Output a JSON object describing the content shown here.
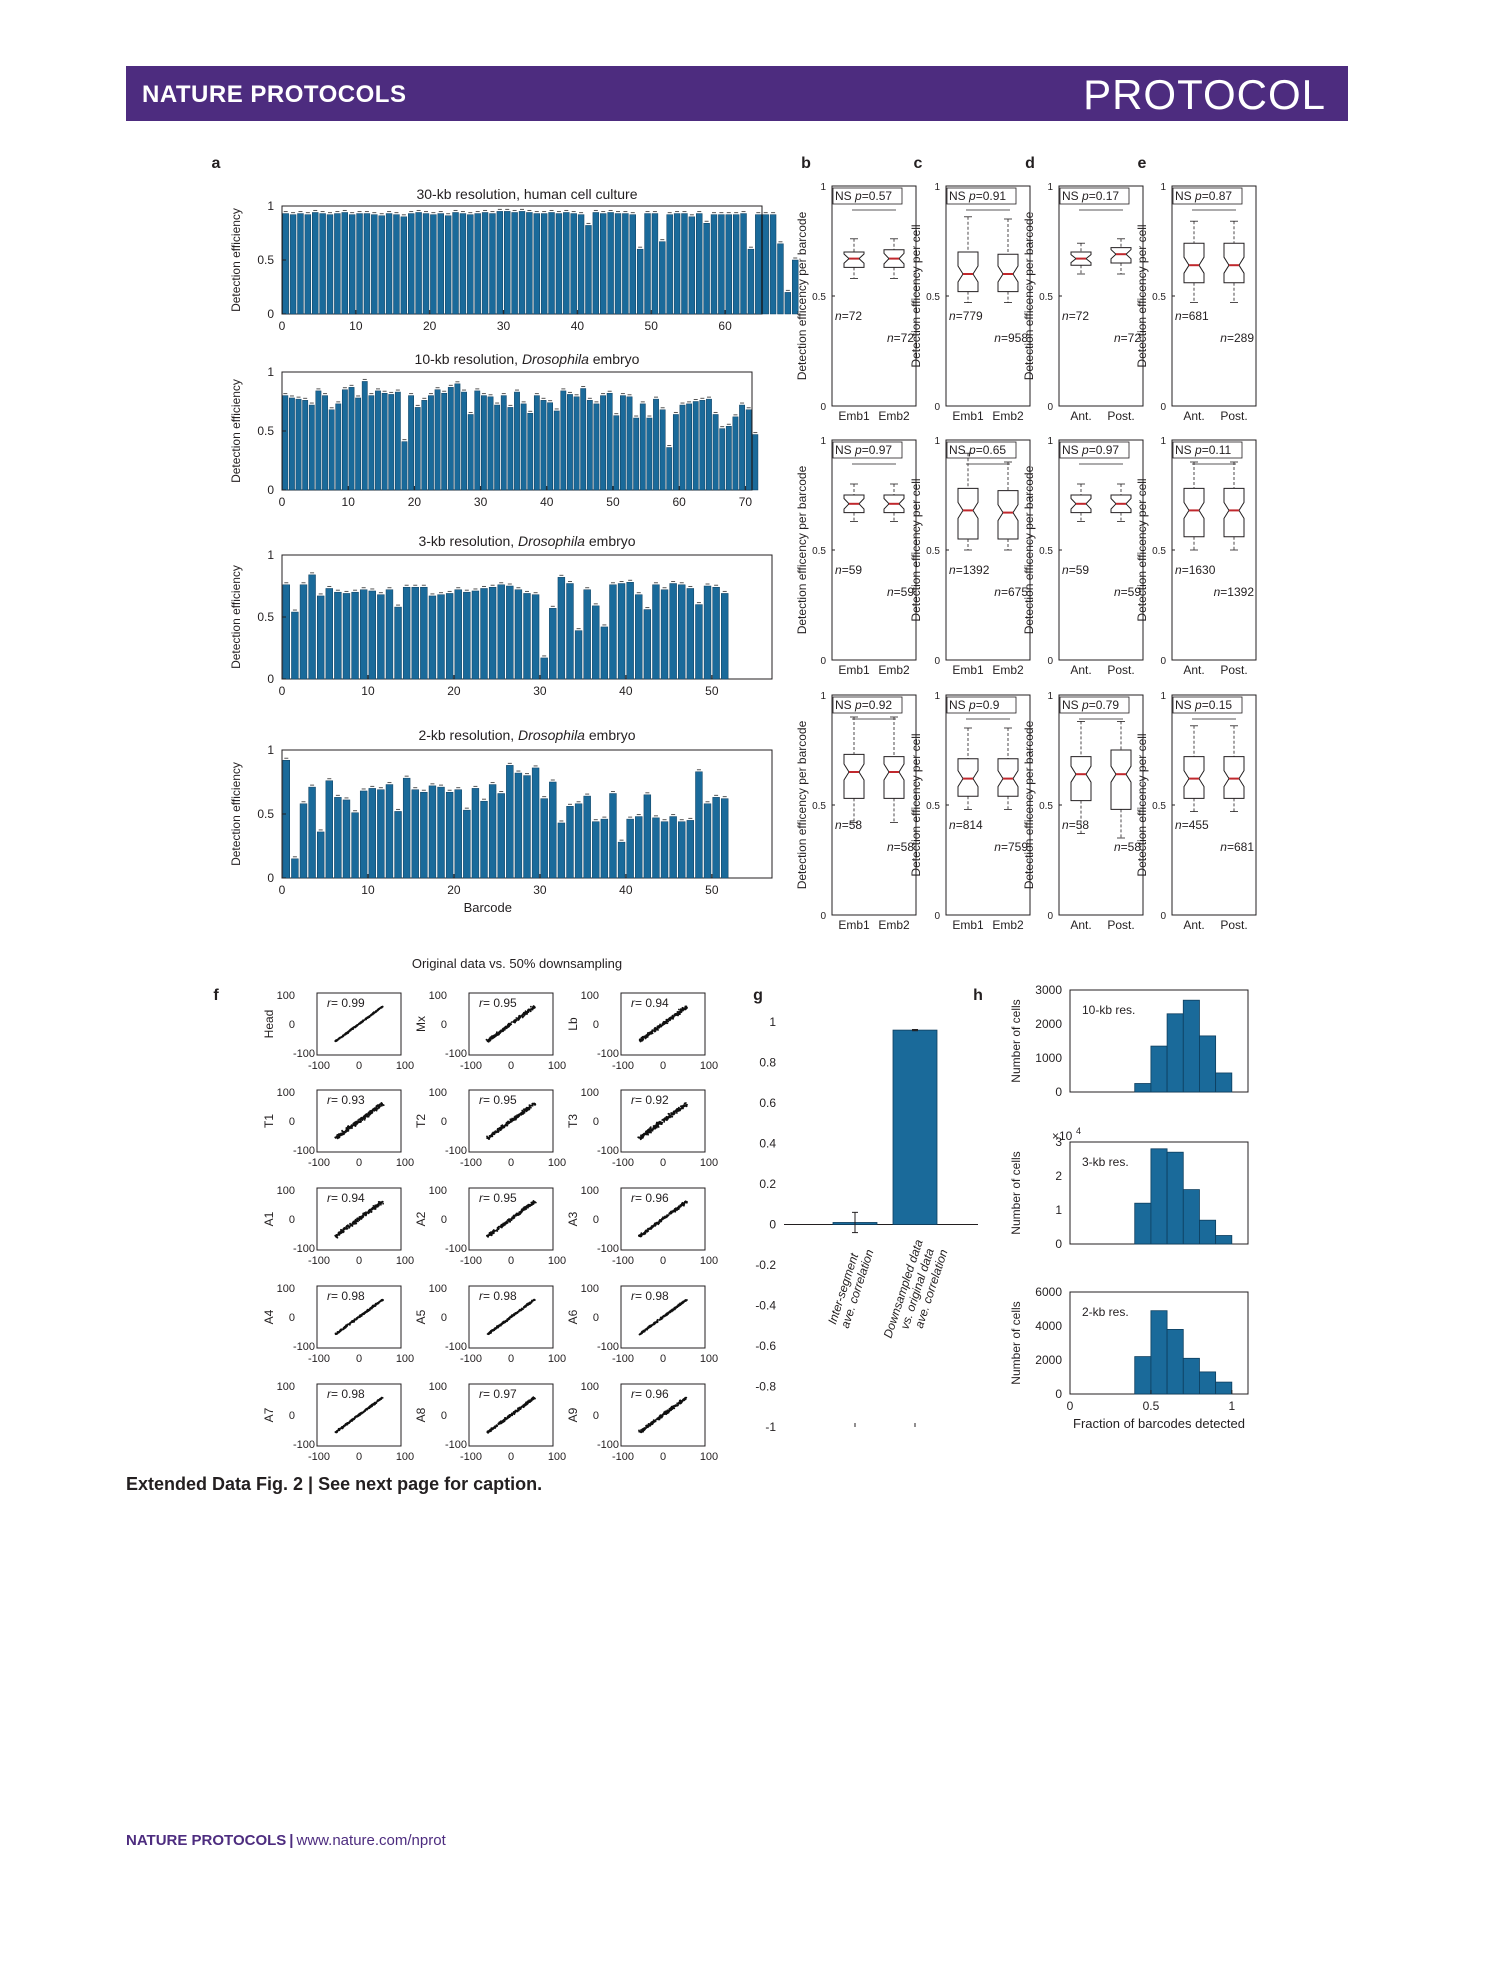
{
  "header": {
    "journal": "NATURE PROTOCOLS",
    "type": "PROTOCOL"
  },
  "caption": "Extended Data Fig. 2 | See next page for caption.",
  "footer": {
    "journal": "NATURE PROTOCOLS",
    "url": "www.nature.com/nprot"
  },
  "colors": {
    "banner": "#4d2c7f",
    "bar": "#1a6a9a",
    "median": "#c0282d"
  },
  "panel_labels": [
    "a",
    "b",
    "c",
    "d",
    "e",
    "f",
    "g",
    "h"
  ],
  "chart_data": [
    {
      "panel": "a",
      "type": "bar",
      "title": "30-kb resolution, human cell culture",
      "ylabel": "Detection efficiency",
      "xlabel": "",
      "xlim": [
        0,
        65
      ],
      "ylim": [
        0,
        1
      ],
      "xticks": [
        0,
        10,
        20,
        30,
        40,
        50,
        60
      ],
      "yticks": [
        "0",
        "0.5",
        "1"
      ],
      "values": [
        0.93,
        0.92,
        0.93,
        0.92,
        0.94,
        0.93,
        0.92,
        0.93,
        0.94,
        0.92,
        0.93,
        0.93,
        0.92,
        0.91,
        0.93,
        0.92,
        0.9,
        0.93,
        0.94,
        0.93,
        0.92,
        0.93,
        0.91,
        0.94,
        0.93,
        0.92,
        0.93,
        0.94,
        0.93,
        0.95,
        0.95,
        0.94,
        0.95,
        0.94,
        0.93,
        0.93,
        0.94,
        0.93,
        0.94,
        0.93,
        0.92,
        0.82,
        0.94,
        0.93,
        0.94,
        0.93,
        0.93,
        0.92,
        0.6,
        0.93,
        0.93,
        0.67,
        0.92,
        0.93,
        0.93,
        0.9,
        0.93,
        0.84,
        0.92,
        0.92,
        0.92,
        0.92,
        0.93,
        0.6,
        0.92,
        0.92,
        0.92,
        0.65,
        0.2,
        0.5
      ]
    },
    {
      "panel": "a",
      "type": "bar",
      "title_pre": "10-kb resolution, ",
      "title_em": "Drosophila",
      "title_post": " embryo",
      "ylabel": "Detection efficiency",
      "xlabel": "",
      "xlim": [
        0,
        71
      ],
      "ylim": [
        0,
        1
      ],
      "xticks": [
        0,
        10,
        20,
        30,
        40,
        50,
        60,
        70
      ],
      "yticks": [
        "0",
        "0.5",
        "1"
      ],
      "values": [
        0.8,
        0.78,
        0.77,
        0.76,
        0.72,
        0.84,
        0.8,
        0.68,
        0.73,
        0.85,
        0.87,
        0.78,
        0.92,
        0.8,
        0.84,
        0.82,
        0.81,
        0.83,
        0.41,
        0.8,
        0.7,
        0.76,
        0.8,
        0.85,
        0.82,
        0.87,
        0.9,
        0.83,
        0.64,
        0.84,
        0.8,
        0.79,
        0.72,
        0.8,
        0.7,
        0.83,
        0.73,
        0.65,
        0.8,
        0.76,
        0.74,
        0.67,
        0.84,
        0.81,
        0.79,
        0.86,
        0.76,
        0.73,
        0.8,
        0.82,
        0.63,
        0.8,
        0.79,
        0.61,
        0.73,
        0.61,
        0.77,
        0.68,
        0.36,
        0.64,
        0.72,
        0.73,
        0.75,
        0.76,
        0.77,
        0.64,
        0.52,
        0.54,
        0.62,
        0.72,
        0.68,
        0.47
      ]
    },
    {
      "panel": "a",
      "type": "bar",
      "title_pre": "3-kb resolution, ",
      "title_em": "Drosophila",
      "title_post": " embryo",
      "ylabel": "Detection efficiency",
      "xlabel": "",
      "xlim": [
        0,
        57
      ],
      "ylim": [
        0,
        1
      ],
      "xticks": [
        0,
        10,
        20,
        30,
        40,
        50
      ],
      "yticks": [
        "0",
        "0.5",
        "1"
      ],
      "values": [
        0.76,
        0.54,
        0.76,
        0.84,
        0.67,
        0.73,
        0.7,
        0.69,
        0.7,
        0.72,
        0.71,
        0.68,
        0.72,
        0.58,
        0.74,
        0.74,
        0.74,
        0.67,
        0.68,
        0.69,
        0.72,
        0.7,
        0.71,
        0.73,
        0.74,
        0.76,
        0.75,
        0.72,
        0.69,
        0.68,
        0.17,
        0.57,
        0.82,
        0.77,
        0.39,
        0.72,
        0.59,
        0.42,
        0.76,
        0.77,
        0.78,
        0.68,
        0.56,
        0.76,
        0.72,
        0.77,
        0.76,
        0.73,
        0.6,
        0.75,
        0.74,
        0.69
      ]
    },
    {
      "panel": "a",
      "type": "bar",
      "title_pre": "2-kb resolution, ",
      "title_em": "Drosophila",
      "title_post": " embryo",
      "ylabel": "Detection efficiency",
      "xlabel": "Barcode",
      "xlim": [
        0,
        57
      ],
      "ylim": [
        0,
        1
      ],
      "xticks": [
        0,
        10,
        20,
        30,
        40,
        50
      ],
      "yticks": [
        "0",
        "0.5",
        "1"
      ],
      "values": [
        0.92,
        0.15,
        0.58,
        0.71,
        0.36,
        0.76,
        0.63,
        0.61,
        0.51,
        0.68,
        0.7,
        0.69,
        0.73,
        0.52,
        0.78,
        0.69,
        0.67,
        0.72,
        0.71,
        0.67,
        0.69,
        0.53,
        0.7,
        0.6,
        0.73,
        0.66,
        0.88,
        0.82,
        0.8,
        0.86,
        0.62,
        0.75,
        0.43,
        0.56,
        0.58,
        0.64,
        0.44,
        0.46,
        0.66,
        0.28,
        0.46,
        0.48,
        0.65,
        0.47,
        0.44,
        0.48,
        0.44,
        0.45,
        0.83,
        0.58,
        0.63,
        0.62
      ]
    },
    {
      "panel": "b-e",
      "type": "box",
      "ylim": [
        0,
        1
      ],
      "columns": [
        {
          "label": "b",
          "ylabel": "Detection efficency per barcode",
          "xticks": [
            "Emb1",
            "Emb2"
          ]
        },
        {
          "label": "c",
          "ylabel": "Detection efficency per cell",
          "xticks": [
            "Emb1",
            "Emb2"
          ]
        },
        {
          "label": "d",
          "ylabel": "Detection efficency per barcode",
          "xticks": [
            "Ant.",
            "Post."
          ]
        },
        {
          "label": "e",
          "ylabel": "Detection efficency per cell",
          "xticks": [
            "Ant.",
            "Post."
          ]
        }
      ],
      "rows": [
        [
          {
            "p": "0.57",
            "n1": "72",
            "n2": "72",
            "boxes": [
              [
                0.76,
                0.7,
                0.67,
                0.63,
                0.58
              ],
              [
                0.76,
                0.71,
                0.67,
                0.63,
                0.58
              ]
            ]
          },
          {
            "p": "0.91",
            "n1": "779",
            "n2": "958",
            "boxes": [
              [
                0.86,
                0.7,
                0.6,
                0.52,
                0.47
              ],
              [
                0.85,
                0.69,
                0.6,
                0.52,
                0.47
              ]
            ]
          },
          {
            "p": "0.17",
            "n1": "72",
            "n2": "72",
            "boxes": [
              [
                0.74,
                0.7,
                0.67,
                0.64,
                0.6
              ],
              [
                0.76,
                0.72,
                0.69,
                0.65,
                0.6
              ]
            ]
          },
          {
            "p": "0.87",
            "n1": "681",
            "n2": "289",
            "boxes": [
              [
                0.84,
                0.74,
                0.64,
                0.56,
                0.47
              ],
              [
                0.84,
                0.74,
                0.64,
                0.56,
                0.47
              ]
            ]
          }
        ],
        [
          {
            "p": "0.97",
            "n1": "59",
            "n2": "59",
            "boxes": [
              [
                0.8,
                0.75,
                0.71,
                0.67,
                0.63
              ],
              [
                0.8,
                0.75,
                0.71,
                0.67,
                0.63
              ]
            ]
          },
          {
            "p": "0.65",
            "n1": "1392",
            "n2": "675",
            "boxes": [
              [
                0.94,
                0.78,
                0.68,
                0.55,
                0.5
              ],
              [
                0.9,
                0.77,
                0.67,
                0.55,
                0.5
              ]
            ]
          },
          {
            "p": "0.97",
            "n1": "59",
            "n2": "59",
            "boxes": [
              [
                0.8,
                0.75,
                0.71,
                0.67,
                0.63
              ],
              [
                0.8,
                0.75,
                0.71,
                0.67,
                0.63
              ]
            ]
          },
          {
            "p": "0.11",
            "n1": "1630",
            "n2": "1392",
            "boxes": [
              [
                0.9,
                0.78,
                0.68,
                0.56,
                0.5
              ],
              [
                0.9,
                0.78,
                0.68,
                0.56,
                0.5
              ]
            ]
          }
        ],
        [
          {
            "p": "0.92",
            "n1": "58",
            "n2": "58",
            "boxes": [
              [
                0.9,
                0.73,
                0.65,
                0.53,
                0.42
              ],
              [
                0.9,
                0.72,
                0.65,
                0.53,
                0.42
              ]
            ]
          },
          {
            "p": "0.9",
            "n1": "814",
            "n2": "759",
            "boxes": [
              [
                0.85,
                0.71,
                0.62,
                0.54,
                0.48
              ],
              [
                0.85,
                0.71,
                0.62,
                0.54,
                0.48
              ]
            ]
          },
          {
            "p": "0.79",
            "n1": "58",
            "n2": "58",
            "boxes": [
              [
                0.88,
                0.72,
                0.64,
                0.52,
                0.37
              ],
              [
                0.88,
                0.75,
                0.64,
                0.48,
                0.35
              ]
            ]
          },
          {
            "p": "0.15",
            "n1": "455",
            "n2": "681",
            "boxes": [
              [
                0.86,
                0.72,
                0.62,
                0.53,
                0.47
              ],
              [
                0.86,
                0.72,
                0.62,
                0.53,
                0.47
              ]
            ]
          }
        ]
      ]
    },
    {
      "panel": "f",
      "type": "scatter",
      "title": "Original data vs. 50% downsampling",
      "xlim": [
        -100,
        100
      ],
      "ylim": [
        -100,
        100
      ],
      "ticks": [
        "-100",
        "0",
        "100"
      ],
      "plots": [
        {
          "name": "Head",
          "r": "0.99"
        },
        {
          "name": "Mx",
          "r": "0.95"
        },
        {
          "name": "Lb",
          "r": "0.94"
        },
        {
          "name": "T1",
          "r": "0.93"
        },
        {
          "name": "T2",
          "r": "0.95"
        },
        {
          "name": "T3",
          "r": "0.92"
        },
        {
          "name": "A1",
          "r": "0.94"
        },
        {
          "name": "A2",
          "r": "0.95"
        },
        {
          "name": "A3",
          "r": "0.96"
        },
        {
          "name": "A4",
          "r": "0.98"
        },
        {
          "name": "A5",
          "r": "0.98"
        },
        {
          "name": "A6",
          "r": "0.98"
        },
        {
          "name": "A7",
          "r": "0.98"
        },
        {
          "name": "A8",
          "r": "0.97"
        },
        {
          "name": "A9",
          "r": "0.96"
        }
      ]
    },
    {
      "panel": "g",
      "type": "bar",
      "ylim": [
        -1,
        1
      ],
      "yticks": [
        "1",
        "0.8",
        "0.6",
        "0.4",
        "0.2",
        "0",
        "-0.2",
        "-0.4",
        "-0.6",
        "-0.8",
        "-1"
      ],
      "categories": [
        [
          "Inter-segment",
          "ave. correlation"
        ],
        [
          "Downsampled data",
          "vs. original data",
          "ave. correlation"
        ]
      ],
      "values": [
        0.01,
        0.96
      ],
      "errors": [
        0.05,
        0.003
      ]
    },
    {
      "panel": "h",
      "type": "histogram",
      "xlabel": "Fraction of barcodes detected",
      "ylabel": "Number of cells",
      "xlim": [
        0,
        1.1
      ],
      "xticks": [
        "0",
        "0.5",
        "1"
      ],
      "bin_edges": [
        0.4,
        0.5,
        0.6,
        0.7,
        0.8,
        0.9,
        1.0
      ],
      "plots": [
        {
          "label": "10-kb res.",
          "ymax": 3000,
          "yticks": [
            "0",
            "1000",
            "2000",
            "3000"
          ],
          "exp": "",
          "counts": [
            250,
            1350,
            2300,
            2700,
            1650,
            560
          ]
        },
        {
          "label": "3-kb res.",
          "ymax": 30000,
          "yticks": [
            "0",
            "1",
            "2",
            "3"
          ],
          "exp": "4",
          "counts": [
            12000,
            28000,
            27000,
            16000,
            7000,
            2500
          ]
        },
        {
          "label": "2-kb res.",
          "ymax": 6000,
          "yticks": [
            "0",
            "2000",
            "4000",
            "6000"
          ],
          "exp": "",
          "counts": [
            2200,
            4900,
            3800,
            2100,
            1300,
            700
          ]
        }
      ]
    }
  ]
}
